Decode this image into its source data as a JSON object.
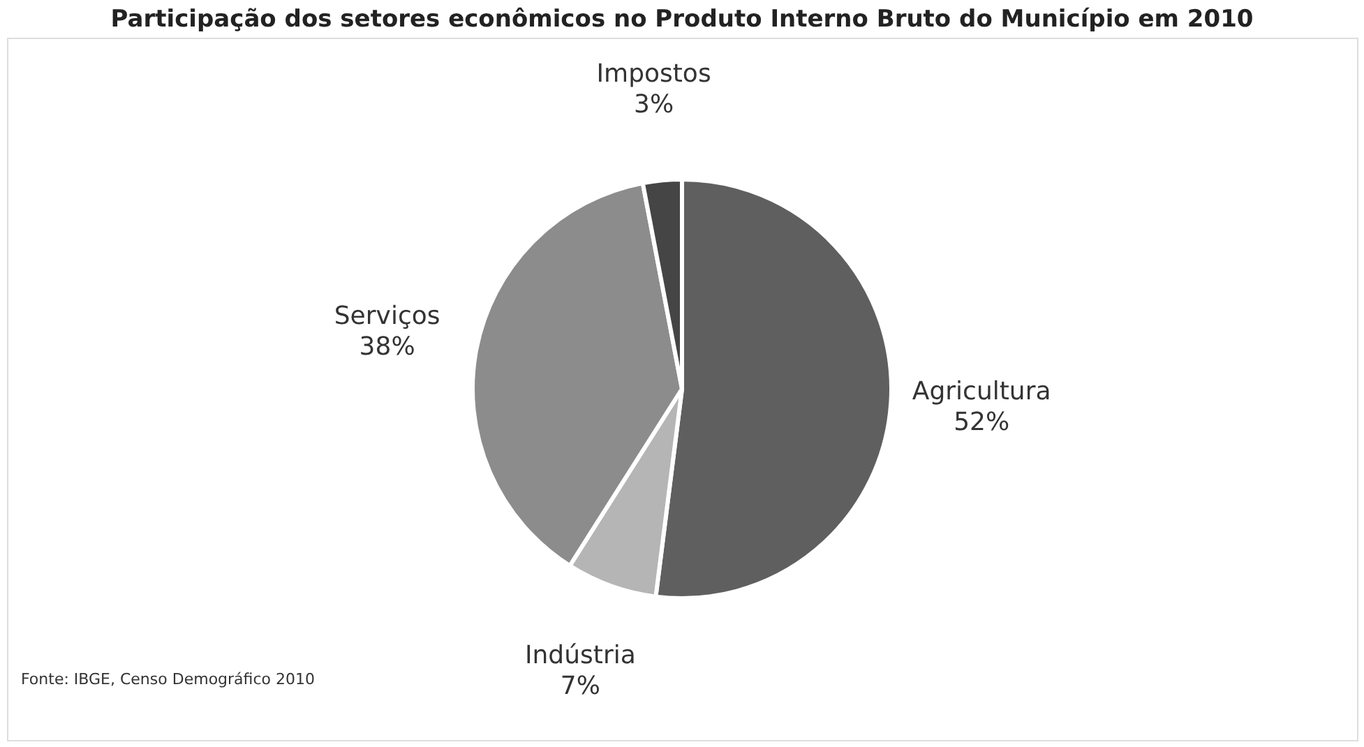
{
  "chart_data": {
    "type": "pie",
    "title": "Participação dos setores econômicos no Produto Interno Bruto do Município em 2010",
    "categories": [
      "Agricultura",
      "Indústria",
      "Serviços",
      "Impostos"
    ],
    "values": [
      52,
      7,
      38,
      3
    ],
    "colors": [
      "#5f5f5f",
      "#b5b5b5",
      "#8c8c8c",
      "#454545"
    ],
    "value_labels": [
      "52%",
      "7%",
      "38%",
      "3%"
    ],
    "legend": false,
    "annotations": [
      "Fonte: IBGE, Censo Demográfico 2010"
    ]
  }
}
